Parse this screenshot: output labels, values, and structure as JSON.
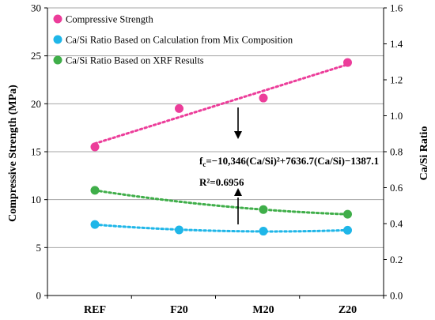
{
  "chart_data": {
    "type": "scatter",
    "categories": [
      "REF",
      "F20",
      "M20",
      "Z20"
    ],
    "ylabel_left": "Compressive Strength (MPa)",
    "ylabel_right": "Ca/Si Ratio",
    "ylim_left": [
      0,
      30
    ],
    "yticks_left": [
      "0",
      "5",
      "10",
      "15",
      "20",
      "25",
      "30"
    ],
    "ylim_right": [
      0.0,
      1.6
    ],
    "yticks_right": [
      "0.0",
      "0.2",
      "0.4",
      "0.6",
      "0.8",
      "1.0",
      "1.2",
      "1.4",
      "1.6"
    ],
    "grid": true,
    "legend_placement": "top-left",
    "series": [
      {
        "name": "Compressive Strength",
        "axis": "left",
        "color": "#ec3d9a",
        "values": [
          15.5,
          19.5,
          20.6,
          24.3
        ],
        "trendline": "linear"
      },
      {
        "name": "Ca/Si Ratio Based on Calculation from Mix Composition",
        "axis": "right",
        "color": "#1fb6e8",
        "values": [
          0.395,
          0.365,
          0.358,
          0.363
        ],
        "trendline": "polynomial"
      },
      {
        "name": "Ca/Si Ratio Based on XRF Results",
        "axis": "right",
        "color": "#3fae49",
        "values": [
          0.585,
          null,
          0.478,
          0.452
        ],
        "trendline": "polynomial"
      }
    ],
    "annotations": {
      "equation_prefix": "f",
      "equation_subscript": "c",
      "equation_body": "=−10,346(Ca/Si)²+7636.7(Ca/Si)−1387.1",
      "r_squared": "R²=0.6956"
    }
  }
}
